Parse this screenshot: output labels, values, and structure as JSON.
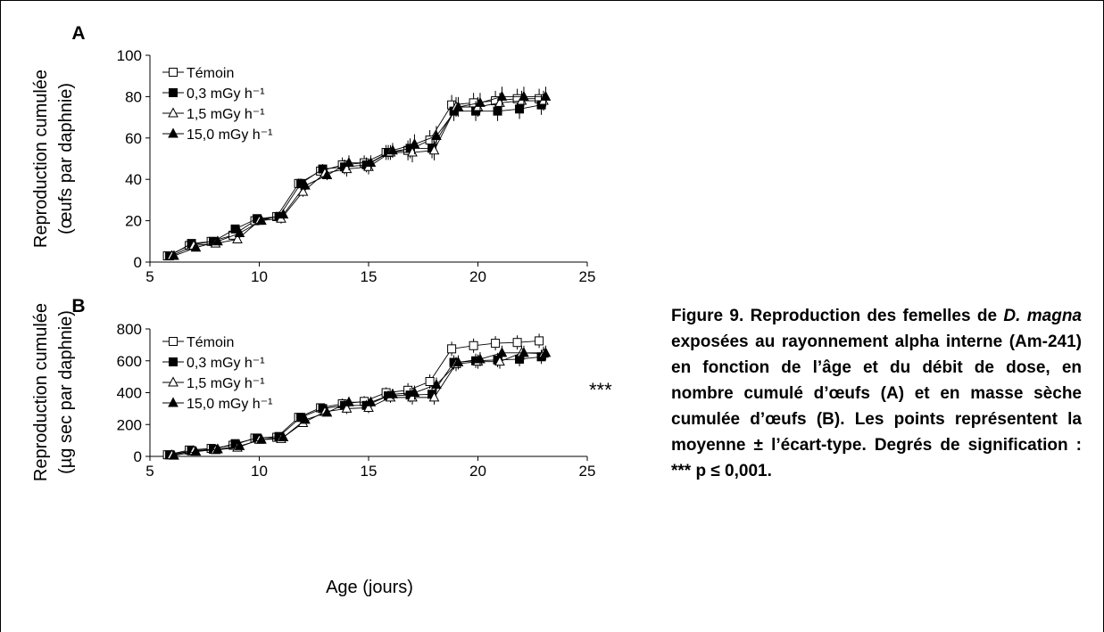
{
  "chart_data": [
    {
      "type": "line",
      "panel_label": "A",
      "ylabel_line1": "Reproduction cumulée",
      "ylabel_line2": "(œufs par daphnie)",
      "xlabel": "",
      "xlim": [
        5,
        25
      ],
      "ylim": [
        0,
        100
      ],
      "xticks": [
        "5",
        "10",
        "15",
        "20",
        "25"
      ],
      "yticks": [
        "0",
        "20",
        "40",
        "60",
        "80",
        "100"
      ],
      "legend_position": "top-left",
      "annotation": "",
      "series": [
        {
          "name": "Témoin",
          "marker": "open-square",
          "x": [
            5.8,
            6.8,
            7.8,
            8.8,
            9.8,
            10.8,
            11.8,
            12.8,
            13.8,
            14.8,
            15.8,
            16.8,
            17.8,
            18.8,
            19.8,
            20.8,
            21.8,
            22.8
          ],
          "y": [
            3,
            8,
            10,
            13,
            20,
            22,
            38,
            44,
            47,
            48,
            53,
            54,
            59,
            76,
            77,
            78,
            79,
            79
          ]
        },
        {
          "name": "0,3 mGy h⁻¹",
          "marker": "filled-square",
          "x": [
            5.9,
            6.9,
            7.9,
            8.9,
            9.9,
            10.9,
            11.9,
            12.9,
            13.9,
            14.9,
            15.9,
            16.9,
            17.9,
            18.9,
            19.9,
            20.9,
            21.9,
            22.9
          ],
          "y": [
            3,
            9,
            10,
            16,
            21,
            22,
            38,
            45,
            46,
            47,
            53,
            55,
            55,
            73,
            73,
            73,
            74,
            76
          ]
        },
        {
          "name": "1,5 mGy h⁻¹",
          "marker": "open-triangle",
          "x": [
            6.0,
            7.0,
            8.0,
            9.0,
            10.0,
            11.0,
            12.0,
            13.0,
            14.0,
            15.0,
            16.0,
            17.0,
            18.0,
            19.0,
            20.0,
            21.0,
            22.0,
            23.0
          ],
          "y": [
            3,
            8,
            9,
            11,
            20,
            21,
            34,
            43,
            45,
            46,
            53,
            53,
            54,
            75,
            75,
            77,
            78,
            78
          ]
        },
        {
          "name": "15,0 mGy h⁻¹",
          "marker": "filled-triangle",
          "x": [
            6.1,
            7.1,
            8.1,
            9.1,
            10.1,
            11.1,
            12.1,
            13.1,
            14.1,
            15.1,
            16.1,
            17.1,
            18.1,
            19.1,
            20.1,
            21.1,
            22.1,
            23.1
          ],
          "y": [
            3,
            7,
            10,
            14,
            20,
            23,
            37,
            42,
            48,
            48,
            54,
            57,
            61,
            75,
            77,
            80,
            80,
            80
          ]
        }
      ]
    },
    {
      "type": "line",
      "panel_label": "B",
      "ylabel_line1": "Reproduction cumulée",
      "ylabel_line2": "(µg sec par daphnie)",
      "xlabel": "Age (jours)",
      "xlim": [
        5,
        25
      ],
      "ylim": [
        0,
        800
      ],
      "xticks": [
        "5",
        "10",
        "15",
        "20",
        "25"
      ],
      "yticks": [
        "0",
        "200",
        "400",
        "600",
        "800"
      ],
      "legend_position": "top-left",
      "annotation": "***",
      "series": [
        {
          "name": "Témoin",
          "marker": "open-square",
          "x": [
            5.8,
            6.8,
            7.8,
            8.8,
            9.8,
            10.8,
            11.8,
            12.8,
            13.8,
            14.8,
            15.8,
            16.8,
            17.8,
            18.8,
            19.8,
            20.8,
            21.8,
            22.8
          ],
          "y": [
            10,
            40,
            50,
            70,
            115,
            120,
            245,
            305,
            330,
            345,
            400,
            415,
            470,
            675,
            695,
            710,
            715,
            725
          ]
        },
        {
          "name": "0,3 mGy h⁻¹",
          "marker": "filled-square",
          "x": [
            5.9,
            6.9,
            7.9,
            8.9,
            9.9,
            10.9,
            11.9,
            12.9,
            13.9,
            14.9,
            15.9,
            16.9,
            17.9,
            18.9,
            19.9,
            20.9,
            21.9,
            22.9
          ],
          "y": [
            10,
            35,
            45,
            80,
            115,
            125,
            245,
            300,
            320,
            320,
            380,
            385,
            390,
            590,
            600,
            605,
            610,
            625
          ]
        },
        {
          "name": "1,5 mGy h⁻¹",
          "marker": "open-triangle",
          "x": [
            6.0,
            7.0,
            8.0,
            9.0,
            10.0,
            11.0,
            12.0,
            13.0,
            14.0,
            15.0,
            16.0,
            17.0,
            18.0,
            19.0,
            20.0,
            21.0,
            22.0,
            23.0
          ],
          "y": [
            8,
            35,
            40,
            55,
            105,
            110,
            210,
            280,
            300,
            305,
            370,
            370,
            370,
            580,
            595,
            595,
            650,
            645
          ]
        },
        {
          "name": "15,0 mGy h⁻¹",
          "marker": "filled-triangle",
          "x": [
            6.1,
            7.1,
            8.1,
            9.1,
            10.1,
            11.1,
            12.1,
            13.1,
            14.1,
            15.1,
            16.1,
            17.1,
            18.1,
            19.1,
            20.1,
            21.1,
            22.1,
            23.1
          ],
          "y": [
            5,
            30,
            45,
            65,
            105,
            120,
            230,
            275,
            340,
            340,
            390,
            400,
            450,
            590,
            610,
            650,
            650,
            650
          ]
        }
      ]
    }
  ],
  "caption": {
    "p1": "Figure 9. Reproduction des femelles de ",
    "i1": "D. magna",
    "p2": " exposées au rayonnement alpha interne (Am-241) en fonction de l’âge et du débit de dose, en nombre cumulé d’œufs (A) et en masse sèche cumulée d’œufs (B). Les points représentent la moyenne ± l’écart-type. Degrés de signification : *** p ≤ 0,001."
  }
}
